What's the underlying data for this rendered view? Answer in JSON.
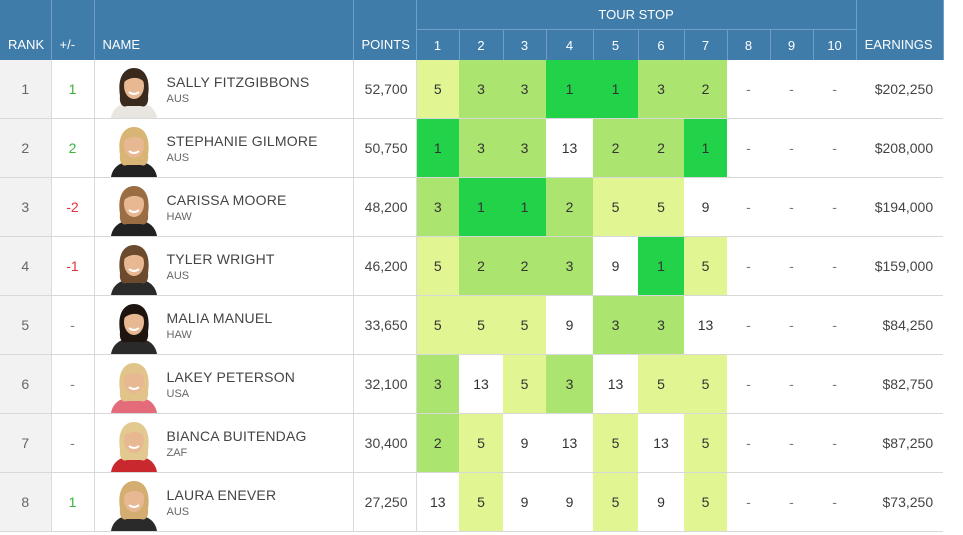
{
  "headers": {
    "rank": "RANK",
    "change": "+/-",
    "name": "NAME",
    "points": "POINTS",
    "tour_stop": "TOUR STOP",
    "stops": [
      "1",
      "2",
      "3",
      "4",
      "5",
      "6",
      "7",
      "8",
      "9",
      "10"
    ],
    "earnings": "EARNINGS"
  },
  "colors": {
    "header_bg": "#3f7caa",
    "best": "#22d34a",
    "good": "#abe46f",
    "mid": "#e1f592",
    "none": "#ffffff",
    "up": "#3ab53a",
    "down": "#e0323c"
  },
  "rows": [
    {
      "rank": "1",
      "change": "1",
      "trend": "up",
      "name": "SALLY FITZGIBBONS",
      "country": "AUS",
      "points": "52,700",
      "stops": [
        "5",
        "3",
        "3",
        "1",
        "1",
        "3",
        "2",
        "-",
        "-",
        "-"
      ],
      "earnings": "$202,250",
      "hair": "#3a2a1e",
      "shirt": "#e9e6e1"
    },
    {
      "rank": "2",
      "change": "2",
      "trend": "up",
      "name": "STEPHANIE GILMORE",
      "country": "AUS",
      "points": "50,750",
      "stops": [
        "1",
        "3",
        "3",
        "13",
        "2",
        "2",
        "1",
        "-",
        "-",
        "-"
      ],
      "earnings": "$208,000",
      "hair": "#d8b574",
      "shirt": "#222222"
    },
    {
      "rank": "3",
      "change": "-2",
      "trend": "down",
      "name": "CARISSA MOORE",
      "country": "HAW",
      "points": "48,200",
      "stops": [
        "3",
        "1",
        "1",
        "2",
        "5",
        "5",
        "9",
        "-",
        "-",
        "-"
      ],
      "earnings": "$194,000",
      "hair": "#9a6d43",
      "shirt": "#222222"
    },
    {
      "rank": "4",
      "change": "-1",
      "trend": "down",
      "name": "TYLER WRIGHT",
      "country": "AUS",
      "points": "46,200",
      "stops": [
        "5",
        "2",
        "2",
        "3",
        "9",
        "1",
        "5",
        "-",
        "-",
        "-"
      ],
      "earnings": "$159,000",
      "hair": "#6b4a2e",
      "shirt": "#2a2a2a"
    },
    {
      "rank": "5",
      "change": "-",
      "trend": "same",
      "name": "MALIA MANUEL",
      "country": "HAW",
      "points": "33,650",
      "stops": [
        "5",
        "5",
        "5",
        "9",
        "3",
        "3",
        "13",
        "-",
        "-",
        "-"
      ],
      "earnings": "$84,250",
      "hair": "#1e1410",
      "shirt": "#2a2a2a"
    },
    {
      "rank": "6",
      "change": "-",
      "trend": "same",
      "name": "LAKEY PETERSON",
      "country": "USA",
      "points": "32,100",
      "stops": [
        "3",
        "13",
        "5",
        "3",
        "13",
        "5",
        "5",
        "-",
        "-",
        "-"
      ],
      "earnings": "$82,750",
      "hair": "#e0c48a",
      "shirt": "#e46b7a"
    },
    {
      "rank": "7",
      "change": "-",
      "trend": "same",
      "name": "BIANCA BUITENDAG",
      "country": "ZAF",
      "points": "30,400",
      "stops": [
        "2",
        "5",
        "9",
        "13",
        "5",
        "13",
        "5",
        "-",
        "-",
        "-"
      ],
      "earnings": "$87,250",
      "hair": "#e2c98f",
      "shirt": "#c8282e"
    },
    {
      "rank": "8",
      "change": "1",
      "trend": "up",
      "name": "LAURA ENEVER",
      "country": "AUS",
      "points": "27,250",
      "stops": [
        "13",
        "5",
        "9",
        "9",
        "5",
        "9",
        "5",
        "-",
        "-",
        "-"
      ],
      "earnings": "$73,250",
      "hair": "#d4ad70",
      "shirt": "#2a2a2a"
    }
  ]
}
